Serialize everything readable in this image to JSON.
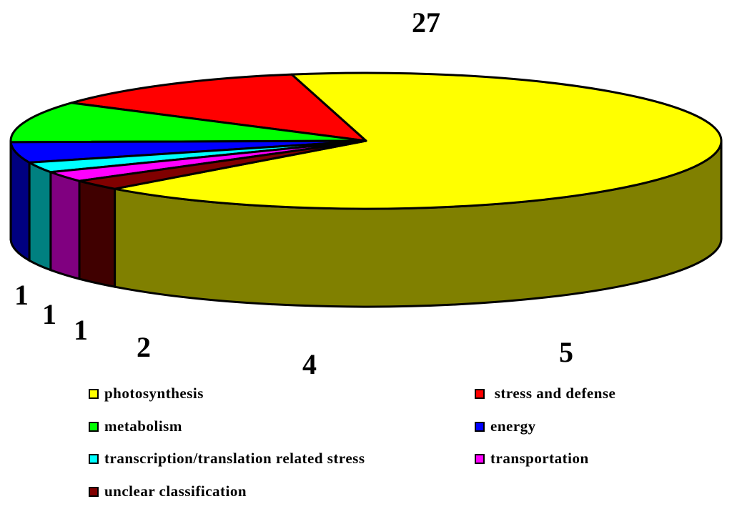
{
  "chart_data": {
    "type": "pie",
    "style": "3d-exploded-flat",
    "categories": [
      "photosynthesis",
      "stress and defense",
      "metabolism",
      "energy",
      "transcription/translation related stress",
      "transportation",
      "unclear classification"
    ],
    "values": [
      27,
      5,
      4,
      2,
      1,
      1,
      1
    ],
    "data_labels": [
      "27",
      "5",
      "4",
      "2",
      "1",
      "1",
      "1"
    ],
    "colors": [
      "#FFFF00",
      "#FF0000",
      "#00FF00",
      "#0000FF",
      "#00FFFF",
      "#FF00FF",
      "#800000"
    ],
    "side_colors": [
      "#808000",
      "#800000",
      "#008000",
      "#000080",
      "#008080",
      "#800080",
      "#400000"
    ],
    "legend_position": "bottom",
    "legend_labels": [
      "photosynthesis",
      " stress and defense",
      "metabolism",
      "energy",
      "transcription/translation related stress",
      "transportation",
      "unclear classification"
    ]
  }
}
